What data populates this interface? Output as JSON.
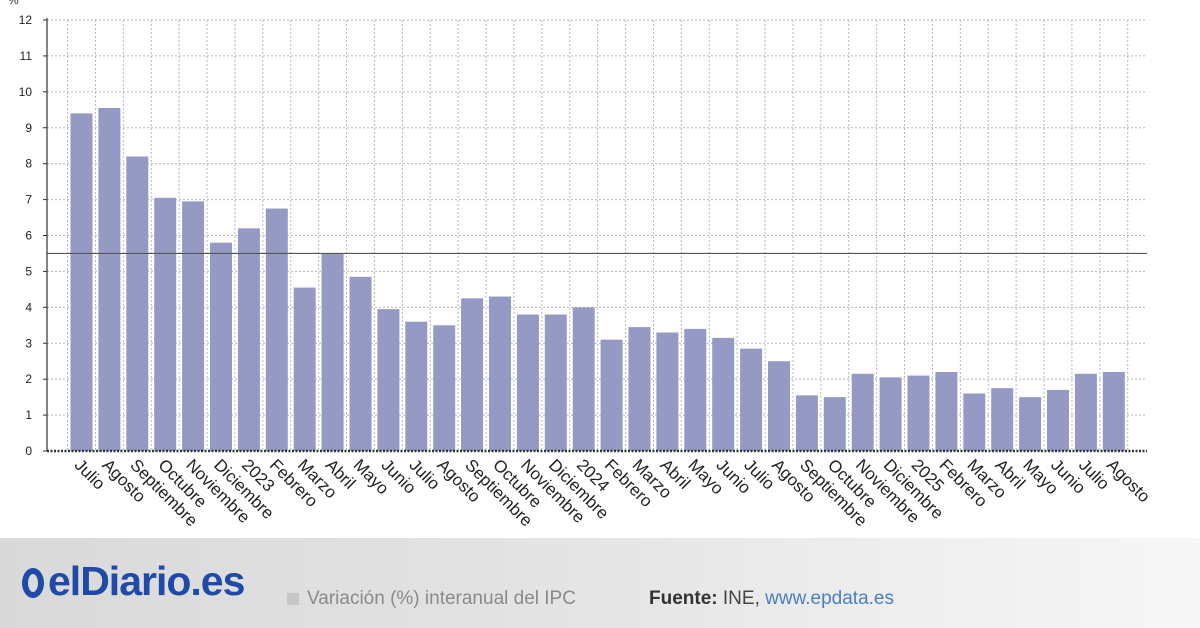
{
  "chart_data": {
    "type": "bar",
    "y_unit": "%",
    "ylim": [
      0,
      12
    ],
    "yticks": [
      0,
      1,
      2,
      3,
      4,
      5,
      6,
      7,
      8,
      9,
      10,
      11,
      12
    ],
    "grid": true,
    "reference_line": 5.5,
    "bar_color": "#949ac3",
    "categories": [
      "Julio",
      "Agosto",
      "Septiembre",
      "Octubre",
      "Noviembre",
      "Diciembre",
      "2023",
      "Febrero",
      "Marzo",
      "Abril",
      "Mayo",
      "Junio",
      "Julio",
      "Agosto",
      "Septiembre",
      "Octubre",
      "Noviembre",
      "Diciembre",
      "2024",
      "Febrero",
      "Marzo",
      "Abril",
      "Mayo",
      "Junio",
      "Julio",
      "Agosto",
      "Septiembre",
      "Octubre",
      "Noviembre",
      "Diciembre",
      "2025",
      "Febrero",
      "Marzo",
      "Abril",
      "Mayo",
      "Junio",
      "Julio",
      "Agosto"
    ],
    "values": [
      9.4,
      9.55,
      8.2,
      7.05,
      6.95,
      5.8,
      6.2,
      6.75,
      4.55,
      5.5,
      4.85,
      3.95,
      3.6,
      3.5,
      4.25,
      4.3,
      3.8,
      3.8,
      4.0,
      3.1,
      3.45,
      3.3,
      3.4,
      3.15,
      2.85,
      2.5,
      1.55,
      1.5,
      2.15,
      2.05,
      2.1,
      2.2,
      1.6,
      1.75,
      1.5,
      1.7,
      2.15,
      2.2
    ]
  },
  "brand": {
    "name": "elDiario.es"
  },
  "legend": {
    "label": "Variación (%) interanual del IPC",
    "color": "#c7c7c7"
  },
  "source": {
    "label": "Fuente:",
    "text": "INE,",
    "link": "www.epdata.es"
  }
}
